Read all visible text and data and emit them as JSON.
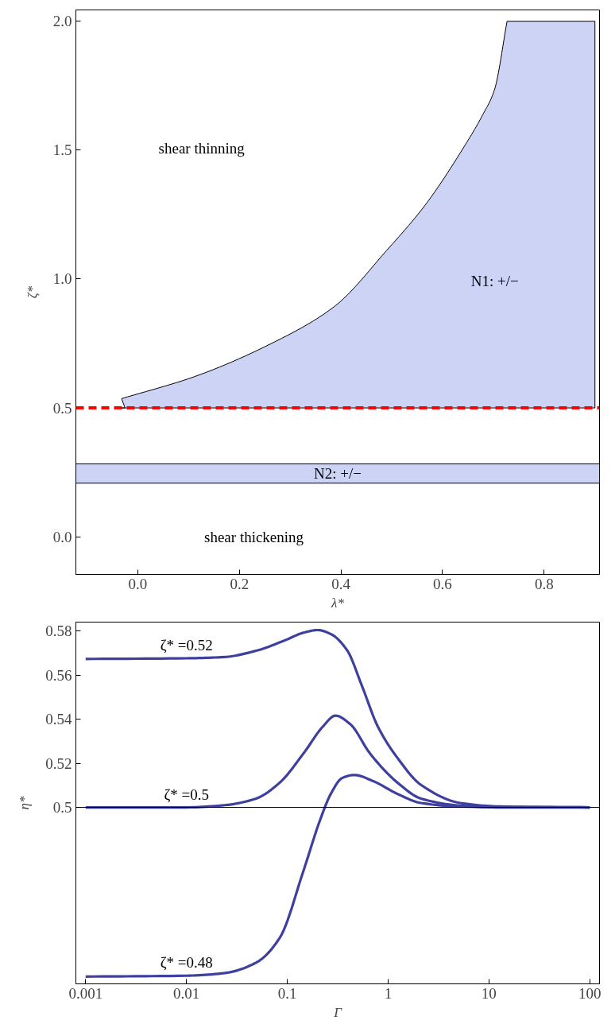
{
  "chart_data": [
    {
      "type": "area",
      "xlabel": "λ*",
      "ylabel": "ζ*",
      "xlim": [
        -0.122,
        0.909
      ],
      "ylim": [
        -0.146,
        2.044
      ],
      "xticks": [
        {
          "value": 0,
          "label": "0.0"
        },
        0.2,
        0.4,
        0.6,
        0.8
      ],
      "yticks": [
        {
          "value": 0,
          "label": "0.0"
        },
        0.5,
        {
          "value": 1,
          "label": "1.0"
        },
        1.5,
        {
          "value": 2,
          "label": "2.0"
        }
      ],
      "grid": false,
      "series": [
        {
          "type": "area",
          "color": "#ccd3f5",
          "x": [
            -0.026,
            -0.032,
            0.111,
            0.262,
            0.388,
            0.489,
            0.565,
            0.641,
            0.679,
            0.702,
            0.727,
            0.9
          ],
          "values": [
            0.504,
            0.536,
            0.621,
            0.749,
            0.895,
            1.109,
            1.285,
            1.509,
            1.637,
            1.733,
            2.0,
            2.0
          ]
        }
      ],
      "bands": [
        {
          "axis": "y",
          "from": 0.208,
          "to": 0.283,
          "label": "N2: +/−",
          "color": "#ccd3f5"
        }
      ],
      "ref_lines": [
        {
          "axis": "y",
          "value": 0.5,
          "color": "#ff0000",
          "line_style": "dashed"
        }
      ],
      "annotations": [
        "shear thinning",
        "N1: +/−",
        "shear thickening"
      ]
    },
    {
      "type": "line",
      "xlabel": "Γ",
      "ylabel": "η*",
      "log": "x",
      "xlim": [
        0.0008,
        125
      ],
      "ylim": [
        0.42,
        0.584
      ],
      "xticks": [
        0.001,
        0.01,
        0.1,
        1,
        10,
        100
      ],
      "yticks": [
        0.5,
        0.52,
        0.54,
        0.56,
        0.58
      ],
      "grid": false,
      "line_style": "solid",
      "marker": "none",
      "series": [
        {
          "name": "ζ* =0.52",
          "color": "#3f3f9f",
          "x": [
            0.001,
            0.01,
            0.024,
            0.049,
            0.092,
            0.145,
            0.2,
            0.27,
            0.39,
            0.55,
            0.79,
            1.24,
            2.12,
            5.2,
            12.7,
            100
          ],
          "values": [
            0.5673,
            0.5676,
            0.5682,
            0.571,
            0.5755,
            0.5792,
            0.5804,
            0.5786,
            0.5714,
            0.5551,
            0.5367,
            0.5224,
            0.5102,
            0.502,
            0.5004,
            0.5
          ]
        },
        {
          "name": "ζ* =0.5",
          "color": "#3f3f9f",
          "x": [
            0.001,
            0.01,
            0.024,
            0.049,
            0.084,
            0.145,
            0.226,
            0.3,
            0.42,
            0.66,
            1.24,
            2.12,
            5.2,
            12.7,
            100
          ],
          "values": [
            0.5,
            0.5,
            0.501,
            0.504,
            0.5112,
            0.5245,
            0.5367,
            0.5416,
            0.5378,
            0.5245,
            0.5112,
            0.504,
            0.5008,
            0.5,
            0.5
          ]
        },
        {
          "name": "ζ* =0.48",
          "color": "#3f3f9f",
          "x": [
            0.001,
            0.01,
            0.024,
            0.049,
            0.084,
            0.145,
            0.21,
            0.27,
            0.35,
            0.46,
            0.72,
            1.24,
            2.12,
            5.2,
            100
          ],
          "values": [
            0.4233,
            0.4237,
            0.4249,
            0.4296,
            0.4408,
            0.4714,
            0.4939,
            0.5061,
            0.5133,
            0.5147,
            0.5118,
            0.5061,
            0.502,
            0.5004,
            0.5
          ]
        }
      ],
      "ref_lines": [
        {
          "axis": "y",
          "value": 0.5,
          "color": "#000000",
          "line_style": "solid"
        }
      ]
    }
  ]
}
